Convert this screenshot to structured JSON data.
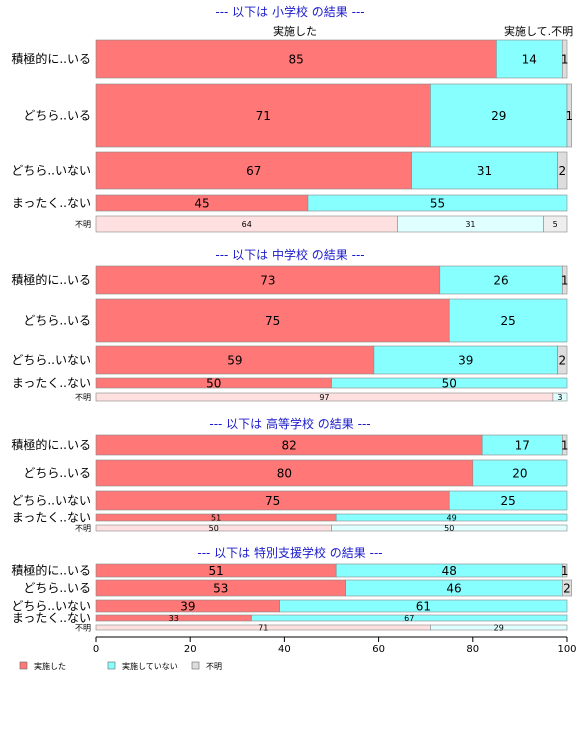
{
  "chart_data": {
    "type": "bar",
    "orientation": "horizontal",
    "stacked": true,
    "xlim": [
      0,
      100
    ],
    "x_ticks": [
      "0",
      "20",
      "40",
      "60",
      "80",
      "100"
    ],
    "grid": false,
    "legend_position": "bottom-left",
    "colors": {
      "実施した": "#ff7777",
      "実施していない": "#88ffff",
      "不明": "#dddddd"
    },
    "column_headers": {
      "done": "実施した",
      "unknown": "実施して.不明"
    },
    "legend": [
      "実施した",
      "実施していない",
      "不明"
    ],
    "panels": [
      {
        "title": "--- 以下は 小学校 の結果 ---",
        "rows": [
          {
            "label": "積極的に..いる",
            "values": [
              85,
              14,
              1
            ]
          },
          {
            "label": "どちら..いる",
            "values": [
              71,
              29,
              1
            ]
          },
          {
            "label": "どちら..いない",
            "values": [
              67,
              31,
              2
            ]
          },
          {
            "label": "まったく..ない",
            "values": [
              45,
              55,
              0
            ]
          },
          {
            "label": "不明",
            "values": [
              64,
              31,
              5
            ]
          }
        ]
      },
      {
        "title": "--- 以下は 中学校 の結果 ---",
        "rows": [
          {
            "label": "積極的に..いる",
            "values": [
              73,
              26,
              1
            ]
          },
          {
            "label": "どちら..いる",
            "values": [
              75,
              25,
              0
            ]
          },
          {
            "label": "どちら..いない",
            "values": [
              59,
              39,
              2
            ]
          },
          {
            "label": "まったく..ない",
            "values": [
              50,
              50,
              0
            ]
          },
          {
            "label": "不明",
            "values": [
              97,
              3,
              0
            ]
          }
        ]
      },
      {
        "title": "--- 以下は 高等学校 の結果 ---",
        "rows": [
          {
            "label": "積極的に..いる",
            "values": [
              82,
              17,
              1
            ]
          },
          {
            "label": "どちら..いる",
            "values": [
              80,
              20,
              0
            ]
          },
          {
            "label": "どちら..いない",
            "values": [
              75,
              25,
              0
            ]
          },
          {
            "label": "まったく..ない",
            "values": [
              51,
              49,
              0
            ]
          },
          {
            "label": "不明",
            "values": [
              50,
              50,
              0
            ]
          }
        ]
      },
      {
        "title": "--- 以下は 特別支援学校 の結果 ---",
        "rows": [
          {
            "label": "積極的に..いる",
            "values": [
              51,
              48,
              1
            ]
          },
          {
            "label": "どちら..いる",
            "values": [
              53,
              46,
              2
            ]
          },
          {
            "label": "どちら..いない",
            "values": [
              39,
              61,
              0
            ]
          },
          {
            "label": "まったく..ない",
            "values": [
              33,
              67,
              0
            ]
          },
          {
            "label": "不明",
            "values": [
              71,
              29,
              0
            ]
          }
        ]
      }
    ]
  }
}
